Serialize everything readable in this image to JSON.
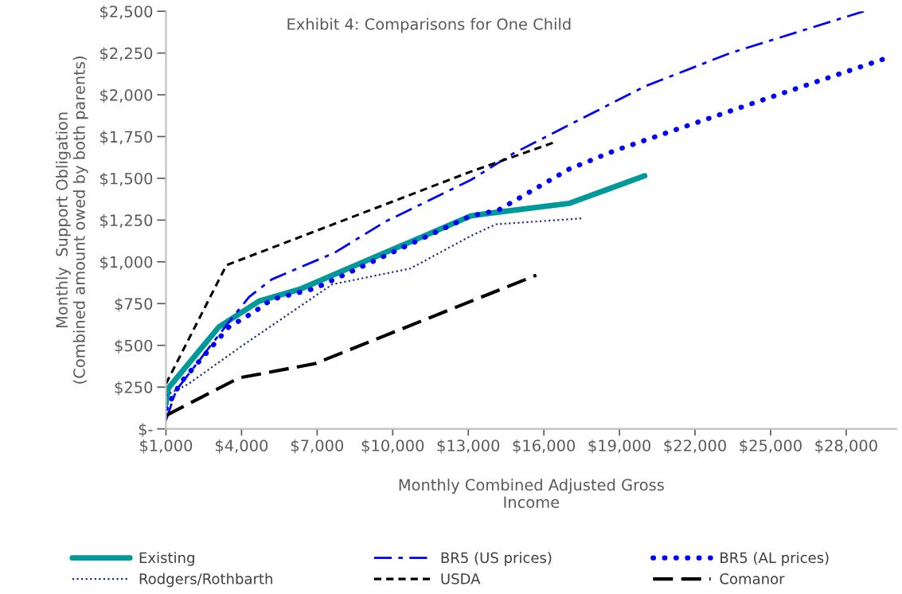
{
  "chart_data": {
    "type": "line",
    "title": "Exhibit 4: Comparisons for One Child",
    "xlabel": "Monthly Combined Adjusted Gross\nIncome",
    "ylabel": "Monthly  Support Obligation\n(Combined amount owed by both parents)",
    "xlim": [
      1000,
      30000
    ],
    "xticks": [
      {
        "value": 1000,
        "label": "$1,000"
      },
      {
        "value": 4000,
        "label": "$4,000"
      },
      {
        "value": 7000,
        "label": "$7,000"
      },
      {
        "value": 10000,
        "label": "$10,000"
      },
      {
        "value": 13000,
        "label": "$13,000"
      },
      {
        "value": 16000,
        "label": "$16,000"
      },
      {
        "value": 19000,
        "label": "$19,000"
      },
      {
        "value": 22000,
        "label": "$22,000"
      },
      {
        "value": 25000,
        "label": "$25,000"
      },
      {
        "value": 28000,
        "label": "$28,000"
      }
    ],
    "ylim": [
      0,
      2500
    ],
    "yticks": [
      {
        "value": 0,
        "label": "$-"
      },
      {
        "value": 250,
        "label": "$250"
      },
      {
        "value": 500,
        "label": "$500"
      },
      {
        "value": 750,
        "label": "$750"
      },
      {
        "value": 1000,
        "label": "$1,000"
      },
      {
        "value": 1250,
        "label": "$1,250"
      },
      {
        "value": 1500,
        "label": "$1,500"
      },
      {
        "value": 1750,
        "label": "$1,750"
      },
      {
        "value": 2000,
        "label": "$2,000"
      },
      {
        "value": 2250,
        "label": "$2,250"
      },
      {
        "value": 2500,
        "label": "$2,500"
      }
    ],
    "legend": "bottom",
    "series": [
      {
        "name": "Existing",
        "color": "#009999",
        "line_style": "solid",
        "x": [
          1000,
          1100,
          3100,
          4700,
          6300,
          13100,
          13800,
          17000,
          20000
        ],
        "values": [
          150,
          245,
          610,
          765,
          835,
          1275,
          1290,
          1350,
          1515
        ]
      },
      {
        "name": "BR5 (US prices)",
        "color": "#0000ff",
        "line_style": "dashdot",
        "x": [
          1000,
          1400,
          3500,
          4300,
          5200,
          7700,
          9700,
          13100,
          14800,
          20000,
          23400,
          28700
        ],
        "values": [
          50,
          230,
          640,
          790,
          895,
          1055,
          1240,
          1490,
          1650,
          2050,
          2250,
          2500
        ]
      },
      {
        "name": "BR5 (AL prices)",
        "color": "#0000ff",
        "line_style": "dotted",
        "x": [
          1000,
          1600,
          3500,
          4500,
          5200,
          6900,
          13100,
          14200,
          17000,
          18800,
          24600,
          29700
        ],
        "values": [
          120,
          280,
          610,
          700,
          775,
          840,
          1275,
          1310,
          1555,
          1665,
          1965,
          2225
        ]
      },
      {
        "name": "Rodgers/Rothbarth",
        "color": "#1f3080",
        "line_style": "dotted",
        "x": [
          1000,
          1900,
          4000,
          7600,
          10700,
          13100,
          14100,
          17500
        ],
        "values": [
          200,
          270,
          495,
          865,
          960,
          1155,
          1225,
          1260
        ]
      },
      {
        "name": "USDA",
        "color": "#000000",
        "line_style": "dashed",
        "x": [
          1000,
          3400,
          13100,
          16500
        ],
        "values": [
          270,
          980,
          1540,
          1720
        ]
      },
      {
        "name": "Comanor",
        "color": "#000000",
        "line_style": "dashed",
        "x": [
          1000,
          3900,
          6900,
          15700
        ],
        "values": [
          80,
          305,
          390,
          920
        ]
      }
    ]
  }
}
